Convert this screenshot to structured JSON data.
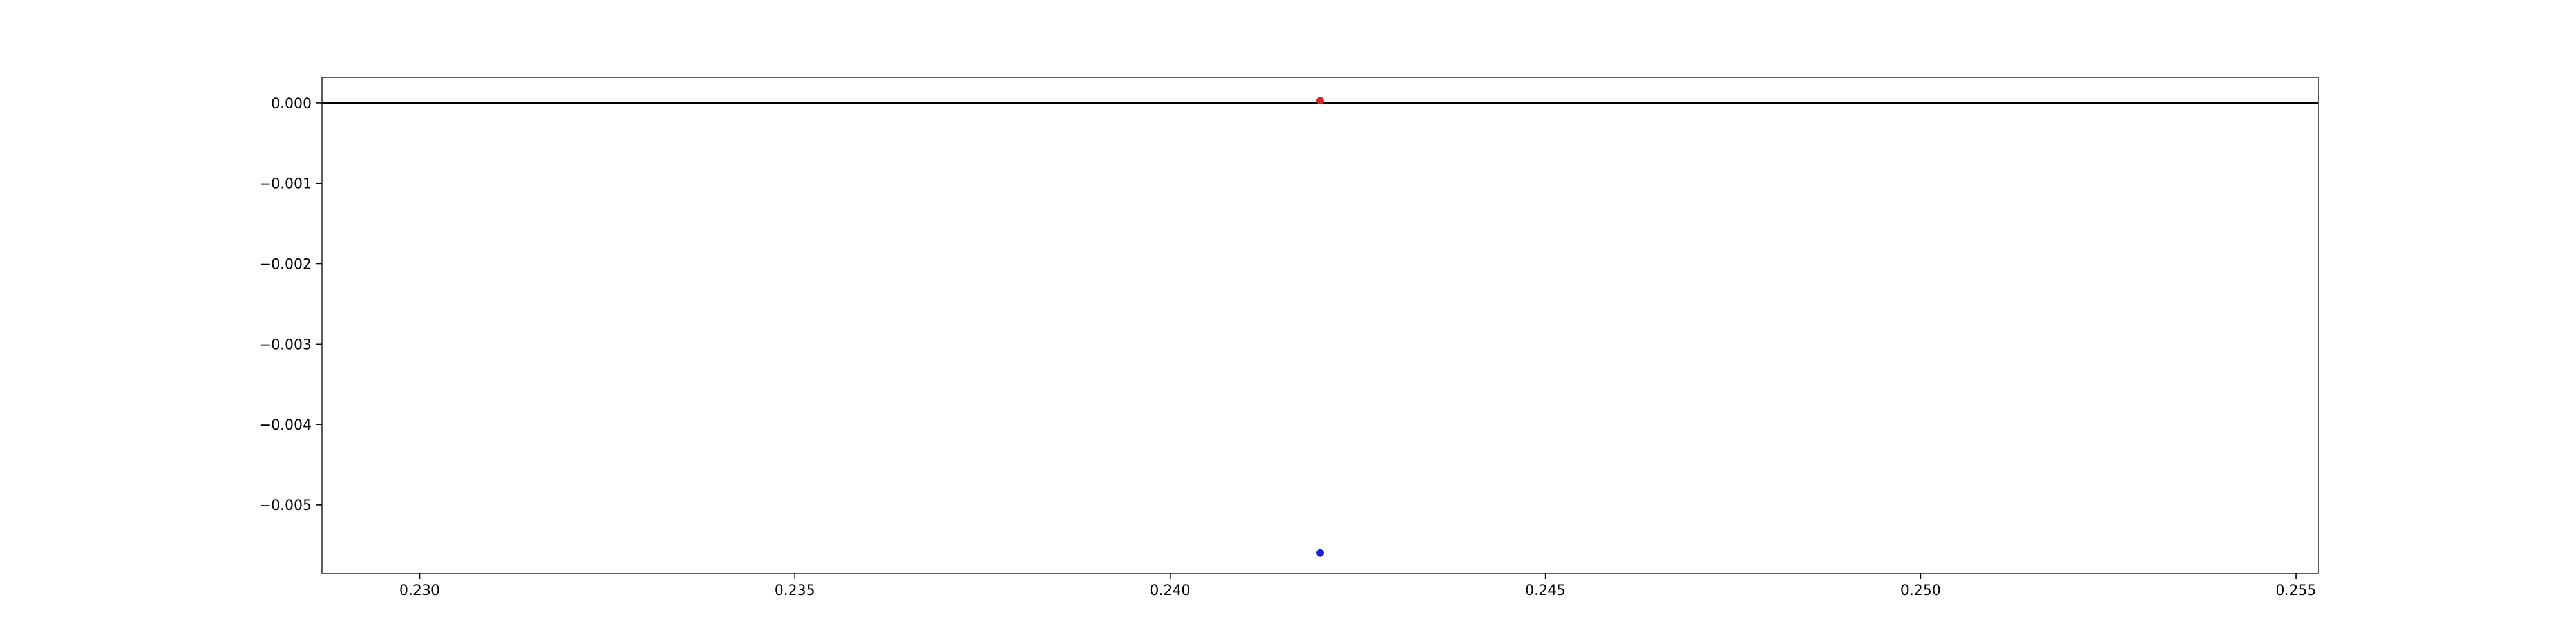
{
  "chart_data": {
    "type": "scatter",
    "xlim": [
      0.2287,
      0.2553
    ],
    "ylim": [
      -0.00585,
      0.00032
    ],
    "x_ticks": [
      {
        "value": 0.23,
        "label": "0.230"
      },
      {
        "value": 0.235,
        "label": "0.235"
      },
      {
        "value": 0.24,
        "label": "0.240"
      },
      {
        "value": 0.245,
        "label": "0.245"
      },
      {
        "value": 0.25,
        "label": "0.250"
      },
      {
        "value": 0.255,
        "label": "0.255"
      }
    ],
    "y_ticks": [
      {
        "value": 0.0,
        "label": "0.000"
      },
      {
        "value": -0.001,
        "label": "−0.001"
      },
      {
        "value": -0.002,
        "label": "−0.002"
      },
      {
        "value": -0.003,
        "label": "−0.003"
      },
      {
        "value": -0.004,
        "label": "−0.004"
      },
      {
        "value": -0.005,
        "label": "−0.005"
      }
    ],
    "reference_line": {
      "y": 0.0,
      "color": "#000000"
    },
    "series": [
      {
        "color": "#d62728",
        "points": [
          {
            "x": 0.242,
            "y": 3e-05
          }
        ]
      },
      {
        "color": "#1f1fd6",
        "points": [
          {
            "x": 0.242,
            "y": -0.0056
          }
        ]
      }
    ],
    "grid": false,
    "legend": "none",
    "title": "",
    "xlabel": "",
    "ylabel": ""
  }
}
